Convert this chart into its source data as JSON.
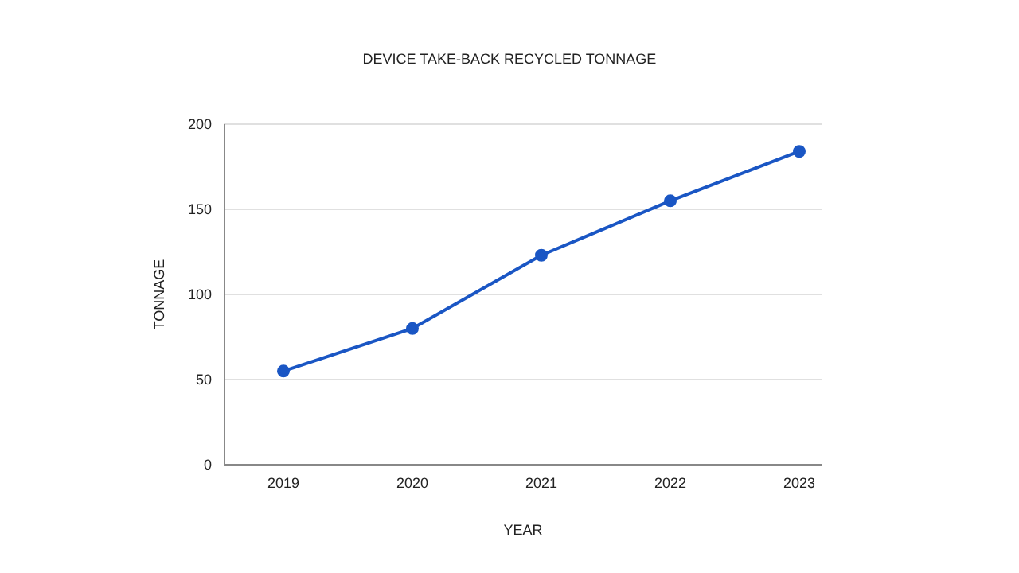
{
  "chart_data": {
    "type": "line",
    "title": "DEVICE TAKE-BACK RECYCLED TONNAGE",
    "xlabel": "YEAR",
    "ylabel": "TONNAGE",
    "categories": [
      "2019",
      "2020",
      "2021",
      "2022",
      "2023"
    ],
    "series": [
      {
        "color": "#1a56c4",
        "values": [
          55,
          80,
          123,
          155,
          184
        ]
      }
    ],
    "ylim": [
      0,
      200
    ],
    "yticks": [
      0,
      50,
      100,
      150,
      200
    ],
    "grid": "y",
    "marker": "circle",
    "line_style": "solid"
  }
}
